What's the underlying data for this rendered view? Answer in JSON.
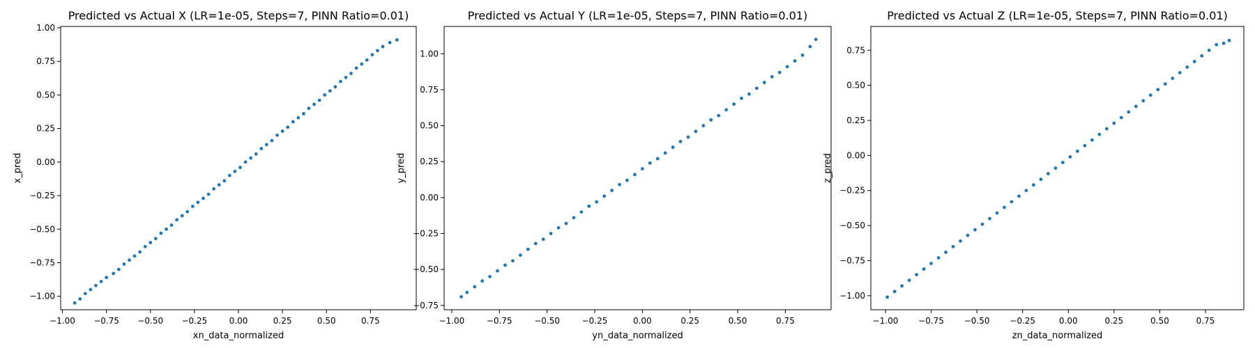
{
  "chart_data": [
    {
      "type": "scatter",
      "title": "Predicted vs Actual X (LR=1e-05, Steps=7, PINN Ratio=0.01)",
      "xlabel": "xn_data_normalized",
      "ylabel": "x_pred",
      "xlim": [
        -1.01,
        1.01
      ],
      "ylim": [
        -1.1,
        1.01
      ],
      "xticks": [
        -1.0,
        -0.75,
        -0.5,
        -0.25,
        0.0,
        0.25,
        0.5,
        0.75
      ],
      "xtick_labels": [
        "−1.00",
        "−0.75",
        "−0.50",
        "−0.25",
        "0.00",
        "0.25",
        "0.50",
        "0.75"
      ],
      "yticks": [
        -1.0,
        -0.75,
        -0.5,
        -0.25,
        0.0,
        0.25,
        0.5,
        0.75,
        1.0
      ],
      "ytick_labels": [
        "−1.00",
        "−0.75",
        "−0.50",
        "−0.25",
        "0.00",
        "0.25",
        "0.50",
        "0.75",
        "1.00"
      ],
      "color": "#1f77b4",
      "points": [
        [
          -0.93,
          -1.05
        ],
        [
          -0.9,
          -1.02
        ],
        [
          -0.87,
          -0.98
        ],
        [
          -0.84,
          -0.95
        ],
        [
          -0.81,
          -0.92
        ],
        [
          -0.78,
          -0.89
        ],
        [
          -0.75,
          -0.86
        ],
        [
          -0.71,
          -0.83
        ],
        [
          -0.68,
          -0.8
        ],
        [
          -0.65,
          -0.76
        ],
        [
          -0.62,
          -0.73
        ],
        [
          -0.59,
          -0.7
        ],
        [
          -0.56,
          -0.67
        ],
        [
          -0.53,
          -0.63
        ],
        [
          -0.5,
          -0.6
        ],
        [
          -0.47,
          -0.57
        ],
        [
          -0.44,
          -0.53
        ],
        [
          -0.41,
          -0.5
        ],
        [
          -0.38,
          -0.47
        ],
        [
          -0.35,
          -0.43
        ],
        [
          -0.32,
          -0.4
        ],
        [
          -0.29,
          -0.37
        ],
        [
          -0.26,
          -0.33
        ],
        [
          -0.23,
          -0.3
        ],
        [
          -0.2,
          -0.27
        ],
        [
          -0.17,
          -0.24
        ],
        [
          -0.14,
          -0.2
        ],
        [
          -0.11,
          -0.17
        ],
        [
          -0.08,
          -0.14
        ],
        [
          -0.05,
          -0.1
        ],
        [
          -0.02,
          -0.07
        ],
        [
          0.01,
          -0.04
        ],
        [
          0.04,
          0.0
        ],
        [
          0.07,
          0.03
        ],
        [
          0.1,
          0.06
        ],
        [
          0.13,
          0.1
        ],
        [
          0.16,
          0.13
        ],
        [
          0.19,
          0.16
        ],
        [
          0.22,
          0.2
        ],
        [
          0.25,
          0.23
        ],
        [
          0.28,
          0.26
        ],
        [
          0.31,
          0.3
        ],
        [
          0.34,
          0.33
        ],
        [
          0.37,
          0.36
        ],
        [
          0.4,
          0.4
        ],
        [
          0.43,
          0.43
        ],
        [
          0.46,
          0.46
        ],
        [
          0.49,
          0.5
        ],
        [
          0.52,
          0.53
        ],
        [
          0.55,
          0.56
        ],
        [
          0.58,
          0.6
        ],
        [
          0.61,
          0.63
        ],
        [
          0.64,
          0.66
        ],
        [
          0.67,
          0.7
        ],
        [
          0.7,
          0.73
        ],
        [
          0.73,
          0.76
        ],
        [
          0.76,
          0.8
        ],
        [
          0.79,
          0.83
        ],
        [
          0.82,
          0.86
        ],
        [
          0.86,
          0.89
        ],
        [
          0.9,
          0.91
        ]
      ]
    },
    {
      "type": "scatter",
      "title": "Predicted vs Actual Y (LR=1e-05, Steps=7, PINN Ratio=0.01)",
      "xlabel": "yn_data_normalized",
      "ylabel": "y_pred",
      "xlim": [
        -1.04,
        0.99
      ],
      "ylim": [
        -0.78,
        1.19
      ],
      "xticks": [
        -1.0,
        -0.75,
        -0.5,
        -0.25,
        0.0,
        0.25,
        0.5,
        0.75
      ],
      "xtick_labels": [
        "−1.00",
        "−0.75",
        "−0.50",
        "−0.25",
        "0.00",
        "0.25",
        "0.50",
        "0.75"
      ],
      "yticks": [
        -0.75,
        -0.5,
        -0.25,
        0.0,
        0.25,
        0.5,
        0.75,
        1.0
      ],
      "ytick_labels": [
        "−0.75",
        "−0.50",
        "−0.25",
        "0.00",
        "0.25",
        "0.50",
        "0.75",
        "1.00"
      ],
      "color": "#1f77b4",
      "points": [
        [
          -0.95,
          -0.69
        ],
        [
          -0.92,
          -0.66
        ],
        [
          -0.88,
          -0.62
        ],
        [
          -0.84,
          -0.58
        ],
        [
          -0.8,
          -0.55
        ],
        [
          -0.76,
          -0.51
        ],
        [
          -0.72,
          -0.47
        ],
        [
          -0.68,
          -0.44
        ],
        [
          -0.64,
          -0.4
        ],
        [
          -0.6,
          -0.36
        ],
        [
          -0.56,
          -0.32
        ],
        [
          -0.52,
          -0.29
        ],
        [
          -0.48,
          -0.25
        ],
        [
          -0.44,
          -0.21
        ],
        [
          -0.4,
          -0.18
        ],
        [
          -0.36,
          -0.14
        ],
        [
          -0.32,
          -0.1
        ],
        [
          -0.28,
          -0.06
        ],
        [
          -0.24,
          -0.03
        ],
        [
          -0.2,
          0.01
        ],
        [
          -0.16,
          0.05
        ],
        [
          -0.12,
          0.09
        ],
        [
          -0.08,
          0.12
        ],
        [
          -0.04,
          0.16
        ],
        [
          0.0,
          0.2
        ],
        [
          0.04,
          0.24
        ],
        [
          0.08,
          0.27
        ],
        [
          0.12,
          0.31
        ],
        [
          0.16,
          0.35
        ],
        [
          0.2,
          0.39
        ],
        [
          0.24,
          0.42
        ],
        [
          0.28,
          0.46
        ],
        [
          0.32,
          0.5
        ],
        [
          0.36,
          0.54
        ],
        [
          0.4,
          0.57
        ],
        [
          0.44,
          0.61
        ],
        [
          0.48,
          0.65
        ],
        [
          0.52,
          0.69
        ],
        [
          0.56,
          0.72
        ],
        [
          0.6,
          0.76
        ],
        [
          0.64,
          0.8
        ],
        [
          0.68,
          0.84
        ],
        [
          0.72,
          0.87
        ],
        [
          0.76,
          0.91
        ],
        [
          0.8,
          0.95
        ],
        [
          0.84,
          0.99
        ],
        [
          0.88,
          1.05
        ],
        [
          0.91,
          1.1
        ]
      ]
    },
    {
      "type": "scatter",
      "title": "Predicted vs Actual Z (LR=1e-05, Steps=7, PINN Ratio=0.01)",
      "xlabel": "zn_data_normalized",
      "ylabel": "z_pred",
      "xlim": [
        -1.08,
        0.96
      ],
      "ylim": [
        -1.1,
        0.92
      ],
      "xticks": [
        -1.0,
        -0.75,
        -0.5,
        -0.25,
        0.0,
        0.25,
        0.5,
        0.75
      ],
      "xtick_labels": [
        "−1.00",
        "−0.75",
        "−0.50",
        "−0.25",
        "0.00",
        "0.25",
        "0.50",
        "0.75"
      ],
      "yticks": [
        -1.0,
        -0.75,
        -0.5,
        -0.25,
        0.0,
        0.25,
        0.5,
        0.75
      ],
      "ytick_labels": [
        "−1.00",
        "−0.75",
        "−0.50",
        "−0.25",
        "0.00",
        "0.25",
        "0.50",
        "0.75"
      ],
      "color": "#1f77b4",
      "points": [
        [
          -0.99,
          -1.01
        ],
        [
          -0.95,
          -0.97
        ],
        [
          -0.91,
          -0.93
        ],
        [
          -0.87,
          -0.89
        ],
        [
          -0.83,
          -0.85
        ],
        [
          -0.79,
          -0.81
        ],
        [
          -0.75,
          -0.77
        ],
        [
          -0.71,
          -0.73
        ],
        [
          -0.67,
          -0.69
        ],
        [
          -0.63,
          -0.65
        ],
        [
          -0.59,
          -0.61
        ],
        [
          -0.55,
          -0.57
        ],
        [
          -0.51,
          -0.53
        ],
        [
          -0.47,
          -0.49
        ],
        [
          -0.43,
          -0.45
        ],
        [
          -0.39,
          -0.41
        ],
        [
          -0.35,
          -0.37
        ],
        [
          -0.31,
          -0.33
        ],
        [
          -0.27,
          -0.29
        ],
        [
          -0.23,
          -0.25
        ],
        [
          -0.19,
          -0.21
        ],
        [
          -0.15,
          -0.17
        ],
        [
          -0.11,
          -0.13
        ],
        [
          -0.07,
          -0.09
        ],
        [
          -0.03,
          -0.05
        ],
        [
          0.01,
          -0.01
        ],
        [
          0.05,
          0.03
        ],
        [
          0.09,
          0.07
        ],
        [
          0.13,
          0.11
        ],
        [
          0.17,
          0.15
        ],
        [
          0.21,
          0.19
        ],
        [
          0.25,
          0.23
        ],
        [
          0.29,
          0.27
        ],
        [
          0.33,
          0.31
        ],
        [
          0.37,
          0.35
        ],
        [
          0.41,
          0.39
        ],
        [
          0.45,
          0.43
        ],
        [
          0.49,
          0.47
        ],
        [
          0.53,
          0.51
        ],
        [
          0.57,
          0.55
        ],
        [
          0.61,
          0.59
        ],
        [
          0.65,
          0.63
        ],
        [
          0.69,
          0.67
        ],
        [
          0.73,
          0.71
        ],
        [
          0.77,
          0.75
        ],
        [
          0.81,
          0.79
        ],
        [
          0.85,
          0.8
        ],
        [
          0.88,
          0.82
        ]
      ]
    }
  ]
}
